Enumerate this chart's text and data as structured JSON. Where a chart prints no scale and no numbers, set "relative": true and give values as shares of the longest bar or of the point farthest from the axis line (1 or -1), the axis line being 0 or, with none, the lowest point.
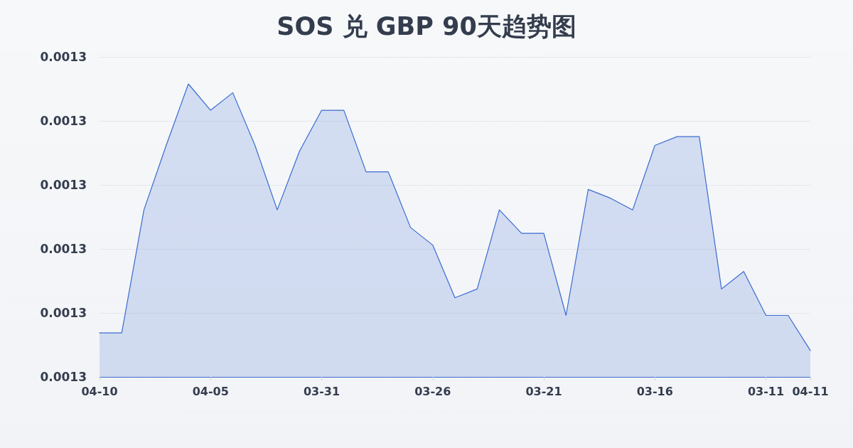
{
  "chart_data": {
    "type": "area",
    "title": "SOS 兑 GBP 90天趋势图",
    "categories": [
      "04-10",
      null,
      null,
      null,
      null,
      "04-05",
      null,
      null,
      null,
      null,
      "03-31",
      null,
      null,
      null,
      null,
      "03-26",
      null,
      null,
      null,
      null,
      "03-21",
      null,
      null,
      null,
      null,
      "03-16",
      null,
      null,
      null,
      null,
      "03-11",
      null,
      "04-11"
    ],
    "y_categories": [
      "0.0013",
      "0.0013",
      "0.0013",
      "0.0013",
      "0.0013",
      "0.0013"
    ],
    "series": [
      {
        "color": "#3a6bd0",
        "values": [
          0.15,
          0.15,
          0.57,
          0.79,
          1,
          0.91,
          0.97,
          0.79,
          0.57,
          0.77,
          0.91,
          0.91,
          0.7,
          0.7,
          0.51,
          0.45,
          0.27,
          0.3,
          0.57,
          0.49,
          0.49,
          0.21,
          0.64,
          0.61,
          0.57,
          0.79,
          0.82,
          0.82,
          0.3,
          0.36,
          0.21,
          0.21,
          0.09
        ]
      }
    ],
    "relative": true,
    "grid": "y",
    "marker": "none",
    "line_style": "solid"
  }
}
